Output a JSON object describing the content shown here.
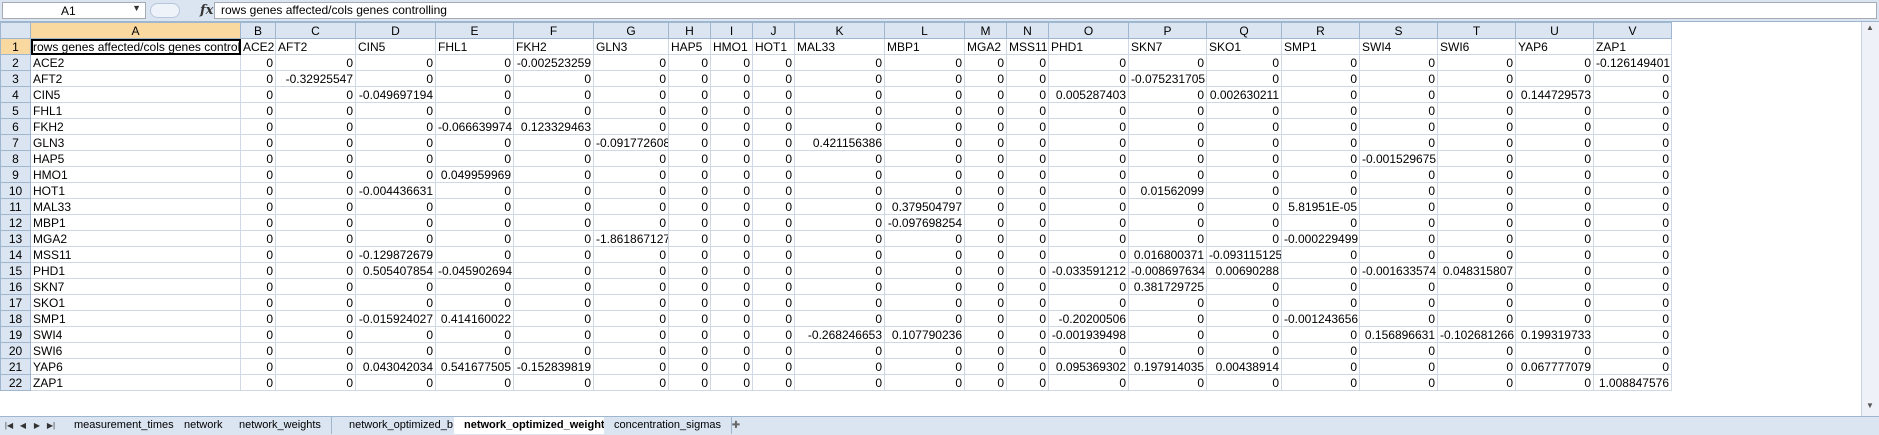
{
  "formula_bar": {
    "name_box": "A1",
    "fx": "fx",
    "formula": "rows genes affected/cols genes controlling"
  },
  "columns": [
    "A",
    "B",
    "C",
    "D",
    "E",
    "F",
    "G",
    "H",
    "I",
    "J",
    "K",
    "L",
    "M",
    "N",
    "O",
    "P",
    "Q",
    "R",
    "S",
    "T",
    "U",
    "V"
  ],
  "rows": [
    [
      "rows genes affected/cols genes controlling",
      "ACE2",
      "AFT2",
      "CIN5",
      "FHL1",
      "FKH2",
      "GLN3",
      "HAP5",
      "HMO1",
      "HOT1",
      "MAL33",
      "MBP1",
      "MGA2",
      "MSS11",
      "PHD1",
      "SKN7",
      "SKO1",
      "SMP1",
      "SWI4",
      "SWI6",
      "YAP6",
      "ZAP1"
    ],
    [
      "ACE2",
      "0",
      "0",
      "0",
      "0",
      "-0.002523259",
      "0",
      "0",
      "0",
      "0",
      "0",
      "0",
      "0",
      "0",
      "0",
      "0",
      "0",
      "0",
      "0",
      "0",
      "0",
      "-0.126149401"
    ],
    [
      "AFT2",
      "0",
      "-0.32925547",
      "0",
      "0",
      "0",
      "0",
      "0",
      "0",
      "0",
      "0",
      "0",
      "0",
      "0",
      "0",
      "-0.075231705",
      "0",
      "0",
      "0",
      "0",
      "0",
      "0"
    ],
    [
      "CIN5",
      "0",
      "0",
      "-0.049697194",
      "0",
      "0",
      "0",
      "0",
      "0",
      "0",
      "0",
      "0",
      "0",
      "0",
      "0.005287403",
      "0",
      "0.002630211",
      "0",
      "0",
      "0",
      "0.144729573",
      "0"
    ],
    [
      "FHL1",
      "0",
      "0",
      "0",
      "0",
      "0",
      "0",
      "0",
      "0",
      "0",
      "0",
      "0",
      "0",
      "0",
      "0",
      "0",
      "0",
      "0",
      "0",
      "0",
      "0",
      "0"
    ],
    [
      "FKH2",
      "0",
      "0",
      "0",
      "-0.066639974",
      "0.123329463",
      "0",
      "0",
      "0",
      "0",
      "0",
      "0",
      "0",
      "0",
      "0",
      "0",
      "0",
      "0",
      "0",
      "0",
      "0",
      "0"
    ],
    [
      "GLN3",
      "0",
      "0",
      "0",
      "0",
      "0",
      "-0.091772608",
      "0",
      "0",
      "0",
      "0.421156386",
      "0",
      "0",
      "0",
      "0",
      "0",
      "0",
      "0",
      "0",
      "0",
      "0",
      "0"
    ],
    [
      "HAP5",
      "0",
      "0",
      "0",
      "0",
      "0",
      "0",
      "0",
      "0",
      "0",
      "0",
      "0",
      "0",
      "0",
      "0",
      "0",
      "0",
      "0",
      "-0.001529675",
      "0",
      "0",
      "0"
    ],
    [
      "HMO1",
      "0",
      "0",
      "0",
      "0.049959969",
      "0",
      "0",
      "0",
      "0",
      "0",
      "0",
      "0",
      "0",
      "0",
      "0",
      "0",
      "0",
      "0",
      "0",
      "0",
      "0",
      "0"
    ],
    [
      "HOT1",
      "0",
      "0",
      "-0.004436631",
      "0",
      "0",
      "0",
      "0",
      "0",
      "0",
      "0",
      "0",
      "0",
      "0",
      "0",
      "0.01562099",
      "0",
      "0",
      "0",
      "0",
      "0",
      "0"
    ],
    [
      "MAL33",
      "0",
      "0",
      "0",
      "0",
      "0",
      "0",
      "0",
      "0",
      "0",
      "0",
      "0.379504797",
      "0",
      "0",
      "0",
      "0",
      "0",
      "5.81951E-05",
      "0",
      "0",
      "0",
      "0"
    ],
    [
      "MBP1",
      "0",
      "0",
      "0",
      "0",
      "0",
      "0",
      "0",
      "0",
      "0",
      "0",
      "-0.097698254",
      "0",
      "0",
      "0",
      "0",
      "0",
      "0",
      "0",
      "0",
      "0",
      "0"
    ],
    [
      "MGA2",
      "0",
      "0",
      "0",
      "0",
      "0",
      "-1.861867127",
      "0",
      "0",
      "0",
      "0",
      "0",
      "0",
      "0",
      "0",
      "0",
      "0",
      "-0.000229499",
      "0",
      "0",
      "0",
      "0"
    ],
    [
      "MSS11",
      "0",
      "0",
      "-0.129872679",
      "0",
      "0",
      "0",
      "0",
      "0",
      "0",
      "0",
      "0",
      "0",
      "0",
      "0",
      "0.016800371",
      "-0.093115125",
      "0",
      "0",
      "0",
      "0",
      "0"
    ],
    [
      "PHD1",
      "0",
      "0",
      "0.505407854",
      "-0.045902694",
      "0",
      "0",
      "0",
      "0",
      "0",
      "0",
      "0",
      "0",
      "0",
      "-0.033591212",
      "-0.008697634",
      "0.00690288",
      "0",
      "-0.001633574",
      "0.048315807",
      "0",
      "0"
    ],
    [
      "SKN7",
      "0",
      "0",
      "0",
      "0",
      "0",
      "0",
      "0",
      "0",
      "0",
      "0",
      "0",
      "0",
      "0",
      "0",
      "0.381729725",
      "0",
      "0",
      "0",
      "0",
      "0",
      "0"
    ],
    [
      "SKO1",
      "0",
      "0",
      "0",
      "0",
      "0",
      "0",
      "0",
      "0",
      "0",
      "0",
      "0",
      "0",
      "0",
      "0",
      "0",
      "0",
      "0",
      "0",
      "0",
      "0",
      "0"
    ],
    [
      "SMP1",
      "0",
      "0",
      "-0.015924027",
      "0.414160022",
      "0",
      "0",
      "0",
      "0",
      "0",
      "0",
      "0",
      "0",
      "0",
      "-0.20200506",
      "0",
      "0",
      "-0.001243656",
      "0",
      "0",
      "0",
      "0"
    ],
    [
      "SWI4",
      "0",
      "0",
      "0",
      "0",
      "0",
      "0",
      "0",
      "0",
      "0",
      "-0.268246653",
      "0.107790236",
      "0",
      "0",
      "-0.001939498",
      "0",
      "0",
      "0",
      "0.156896631",
      "-0.102681266",
      "0.199319733",
      "0"
    ],
    [
      "SWI6",
      "0",
      "0",
      "0",
      "0",
      "0",
      "0",
      "0",
      "0",
      "0",
      "0",
      "0",
      "0",
      "0",
      "0",
      "0",
      "0",
      "0",
      "0",
      "0",
      "0",
      "0"
    ],
    [
      "YAP6",
      "0",
      "0",
      "0.043042034",
      "0.541677505",
      "-0.152839819",
      "0",
      "0",
      "0",
      "0",
      "0",
      "0",
      "0",
      "0",
      "0.095369302",
      "0.197914035",
      "0.00438914",
      "0",
      "0",
      "0",
      "0.067777079",
      "0"
    ],
    [
      "ZAP1",
      "0",
      "0",
      "0",
      "0",
      "0",
      "0",
      "0",
      "0",
      "0",
      "0",
      "0",
      "0",
      "0",
      "0",
      "0",
      "0",
      "0",
      "0",
      "0",
      "0",
      "1.008847576"
    ]
  ],
  "sheet_tabs": [
    {
      "label": "measurement_times",
      "active": false
    },
    {
      "label": "network",
      "active": false
    },
    {
      "label": "network_weights",
      "active": false
    },
    {
      "label": "network_optimized_b",
      "active": false
    },
    {
      "label": "network_optimized_weights",
      "active": true
    },
    {
      "label": "concentration_sigmas",
      "active": false
    }
  ],
  "colors": {
    "header_bg": "#dbe5f1",
    "selected_header": "#f9d99f",
    "gridline": "#d0d7e5"
  }
}
